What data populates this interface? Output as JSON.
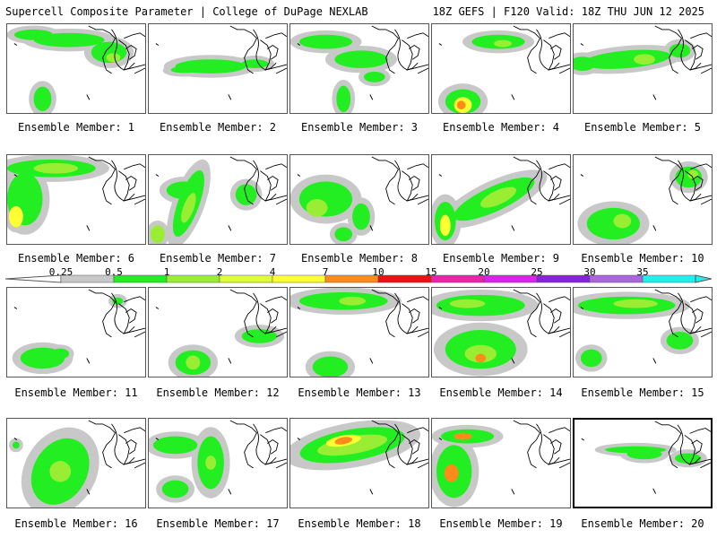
{
  "header": {
    "title": "Supercell Composite Parameter | College of DuPage NEXLAB",
    "valid": "18Z GEFS | F120 Valid: 18Z THU JUN 12 2025"
  },
  "colors": {
    "gray": "#c8c8c8",
    "green": "#22ee22",
    "lightgreen": "#99ee33",
    "yellow": "#ffff33",
    "orange": "#ff8c1a",
    "red": "#ee1111",
    "magenta": "#ee22aa",
    "purple": "#8822dd",
    "cyan": "#22eeee"
  },
  "colorbar": {
    "labels": [
      "0.25",
      "0.5",
      "1",
      "2",
      "4",
      "7",
      "10",
      "15",
      "20",
      "25",
      "30",
      "35"
    ],
    "colors": [
      "#c8c8c8",
      "#22ee22",
      "#99ee33",
      "#ddff33",
      "#ffff33",
      "#ff8c1a",
      "#ee1111",
      "#ee22aa",
      "#dd22ee",
      "#8822dd",
      "#aa66dd",
      "#22eeee"
    ]
  },
  "members": [
    {
      "label": "Ensemble Member: 1",
      "level": 2
    },
    {
      "label": "Ensemble Member: 2",
      "level": 1
    },
    {
      "label": "Ensemble Member: 3",
      "level": 1
    },
    {
      "label": "Ensemble Member: 4",
      "level": 5
    },
    {
      "label": "Ensemble Member: 5",
      "level": 3
    },
    {
      "label": "Ensemble Member: 6",
      "level": 3
    },
    {
      "label": "Ensemble Member: 7",
      "level": 3
    },
    {
      "label": "Ensemble Member: 8",
      "level": 2
    },
    {
      "label": "Ensemble Member: 9",
      "level": 3
    },
    {
      "label": "Ensemble Member: 10",
      "level": 2
    },
    {
      "label": "Ensemble Member: 11",
      "level": 1
    },
    {
      "label": "Ensemble Member: 12",
      "level": 1
    },
    {
      "label": "Ensemble Member: 13",
      "level": 1
    },
    {
      "label": "Ensemble Member: 14",
      "level": 5
    },
    {
      "label": "Ensemble Member: 15",
      "level": 3
    },
    {
      "label": "Ensemble Member: 16",
      "level": 2
    },
    {
      "label": "Ensemble Member: 17",
      "level": 2
    },
    {
      "label": "Ensemble Member: 18",
      "level": 5
    },
    {
      "label": "Ensemble Member: 19",
      "level": 5
    },
    {
      "label": "Ensemble Member: 20",
      "level": 1
    }
  ]
}
